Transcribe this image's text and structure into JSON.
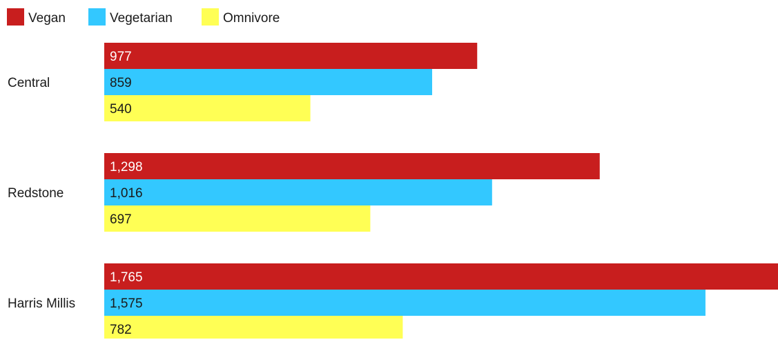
{
  "chart_data": {
    "type": "bar",
    "orientation": "horizontal",
    "categories": [
      "Central",
      "Redstone",
      "Harris Millis"
    ],
    "series": [
      {
        "name": "Vegan",
        "color": "#c81e1e",
        "label_color": "#ffffff",
        "values": [
          977,
          1298,
          1765
        ],
        "labels": [
          "977",
          "1,298",
          "1,765"
        ]
      },
      {
        "name": "Vegetarian",
        "color": "#33c8ff",
        "label_color": "#1a1a1a",
        "values": [
          859,
          1016,
          1575
        ],
        "labels": [
          "859",
          "1,016",
          "1,575"
        ]
      },
      {
        "name": "Omnivore",
        "color": "#ffff55",
        "label_color": "#1a1a1a",
        "values": [
          540,
          697,
          782
        ],
        "labels": [
          "540",
          "697",
          "782"
        ]
      }
    ],
    "xlim": [
      0,
      1765
    ],
    "legend_position": "top-left",
    "grid": false,
    "title": "",
    "xlabel": "",
    "ylabel": ""
  }
}
